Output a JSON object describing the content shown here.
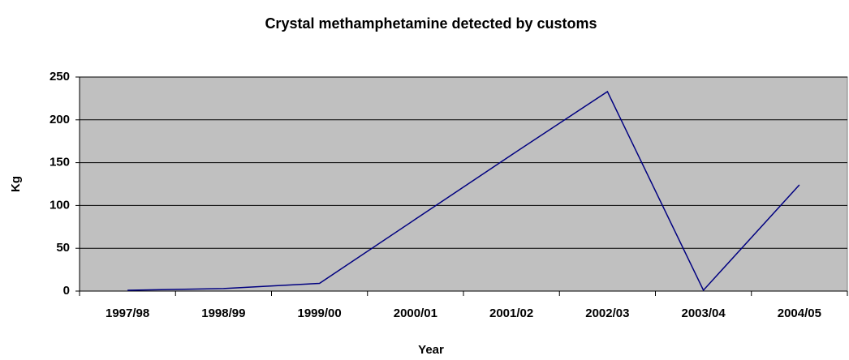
{
  "chart_data": {
    "type": "line",
    "title": "Crystal methamphetamine detected by customs",
    "x_label": "Year",
    "y_label": "Kg",
    "categories": [
      "1997/98",
      "1998/99",
      "1999/00",
      "2000/01",
      "2001/02",
      "2002/03",
      "2003/04",
      "2004/05"
    ],
    "series": [
      {
        "name": "Kg",
        "color": "#000080",
        "values": [
          1,
          3,
          9,
          84,
          159,
          233,
          1,
          124
        ]
      }
    ],
    "ylim": [
      0,
      250
    ],
    "yticks": [
      0,
      50,
      100,
      150,
      200,
      250
    ],
    "grid": true,
    "plot_background": "#c0c0c0"
  }
}
